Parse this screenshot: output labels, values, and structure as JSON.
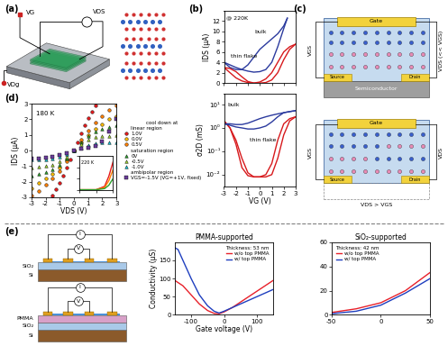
{
  "panel_labels": [
    "(a)",
    "(b)",
    "(c)",
    "(d)",
    "(e)"
  ],
  "diagram_a": {
    "gate_voltage": "VG",
    "drain_source_voltage": "VDS",
    "back_voltage": "VDg"
  },
  "diagram_c": {
    "top": {
      "gate": "Gate",
      "source": "Source",
      "drain": "Drain",
      "substrate": "Semiconductor",
      "vgs": "VGS",
      "vds": "VDS (<< VGS)"
    },
    "bottom": {
      "gate": "Gate",
      "source": "Source",
      "drain": "Drain",
      "vgs": "VGS",
      "vds": "VDS",
      "condition": "VDS > VGS"
    }
  },
  "diagram_e": {
    "devices": [
      {
        "layers": [
          "SiO₂",
          "Si"
        ],
        "current": "I",
        "voltage": "V"
      },
      {
        "layers": [
          "PMMA",
          "SiO₂",
          "Si"
        ],
        "current": "I",
        "voltage": "V"
      }
    ]
  },
  "chart_data": [
    {
      "type": "line",
      "ylabel": "IDS (μA)",
      "xlim": [
        -3,
        3
      ],
      "xticks": [
        -3,
        -2,
        -1,
        0,
        1,
        2,
        3
      ],
      "ylim": [
        0,
        14
      ],
      "yticks": [
        0,
        2,
        4,
        6,
        8,
        10,
        12
      ],
      "tick_labels": "y",
      "annotations": [
        "@ 220K",
        "bulk",
        "thin flake"
      ],
      "series": [
        {
          "color": "#2b3a9e",
          "x": [
            -3,
            -2.5,
            -2,
            -1.5,
            -1,
            -0.5,
            0,
            0.5,
            1,
            1.5,
            2,
            2.3
          ],
          "values": [
            4,
            3.5,
            3,
            2.6,
            2.3,
            2.1,
            2.2,
            2.6,
            4,
            7,
            10.5,
            12.5
          ]
        },
        {
          "color": "#2b3a9e",
          "x": [
            2.3,
            2,
            1.5,
            1,
            0.5,
            0,
            -0.5,
            -1,
            -1.5,
            -2,
            -2.5,
            -3
          ],
          "values": [
            12.5,
            11,
            9.5,
            8.5,
            7.5,
            6.5,
            5,
            3.5,
            2.6,
            2.6,
            3,
            4
          ]
        },
        {
          "color": "#d7191c",
          "x": [
            -3,
            -2.5,
            -2,
            -1.5,
            -1,
            -0.5,
            0,
            0.5,
            1,
            1.5,
            2,
            2.5,
            3
          ],
          "values": [
            3,
            2,
            1,
            0.4,
            0.1,
            0,
            0,
            0.1,
            0.6,
            2,
            4.5,
            6.5,
            7.5
          ]
        },
        {
          "color": "#d7191c",
          "x": [
            3,
            2.5,
            2,
            1.5,
            1,
            0.5,
            0,
            -0.5,
            -1,
            -1.5,
            -2,
            -2.5,
            -3
          ],
          "values": [
            7.5,
            7,
            6,
            4,
            2,
            0.8,
            0.2,
            0,
            0.3,
            1.2,
            2.2,
            2.8,
            3
          ]
        }
      ]
    },
    {
      "type": "line",
      "log": "y",
      "xlabel": "VG (V)",
      "ylabel": "σ2D (mS)",
      "xlim": [
        -3,
        3
      ],
      "xticks": [
        -3,
        -2,
        -1,
        0,
        1,
        2,
        3
      ],
      "ylim": [
        0.003,
        30
      ],
      "yticks": [
        {
          "value": 0.01,
          "label": "10⁻²"
        },
        {
          "value": 0.1,
          "label": "10⁻¹"
        },
        {
          "value": 1,
          "label": "10⁰"
        },
        {
          "value": 10,
          "label": "10¹"
        }
      ],
      "annotations": [
        "bulk",
        "thin flake"
      ],
      "series": [
        {
          "color": "#d7191c",
          "x": [
            -3,
            -2.5,
            -2,
            -1.5,
            -1,
            -0.5,
            0,
            0.5,
            1,
            1.5,
            2,
            2.5,
            3
          ],
          "values": [
            2,
            1,
            0.3,
            0.05,
            0.012,
            0.008,
            0.008,
            0.008,
            0.01,
            0.05,
            0.5,
            2,
            3
          ]
        },
        {
          "color": "#d7191c",
          "x": [
            3,
            2.5,
            2,
            1.5,
            1,
            0.5,
            0,
            -0.5,
            -1,
            -1.5,
            -2,
            -2.5,
            -3
          ],
          "values": [
            3,
            2.5,
            1.5,
            0.3,
            0.03,
            0.01,
            0.008,
            0.008,
            0.009,
            0.02,
            0.2,
            1,
            2
          ]
        },
        {
          "color": "#2b3a9e",
          "x": [
            -3,
            -2.5,
            -2,
            -1.5,
            -1,
            -0.5,
            0,
            0.5,
            1,
            1.5,
            2,
            2.5,
            3
          ],
          "values": [
            1.5,
            1.3,
            1.1,
            1.0,
            0.9,
            0.9,
            1.0,
            1.2,
            1.8,
            3,
            4.5,
            5,
            5.5
          ]
        },
        {
          "color": "#2b3a9e",
          "x": [
            3,
            2.5,
            2,
            1.5,
            1,
            0.5,
            0,
            -0.5,
            -1,
            -1.5,
            -2,
            -2.5,
            -3
          ],
          "values": [
            5.5,
            5,
            4.5,
            4,
            3.5,
            3,
            2.5,
            2,
            1.6,
            1.4,
            1.4,
            1.5,
            1.5
          ]
        }
      ]
    },
    {
      "type": "scatter",
      "xlabel": "VDS (V)",
      "ylabel": "IDS (μA)",
      "xlim": [
        -3,
        3
      ],
      "xticks": [
        -3,
        -2,
        -1,
        0,
        1,
        2,
        3
      ],
      "ylim": [
        -3,
        3
      ],
      "yticks": [
        -3,
        -2,
        -1,
        0,
        1,
        2,
        3
      ],
      "annotations": [
        "180 K"
      ],
      "legend": "right",
      "legend_title": "cool down at",
      "groups": [
        {
          "title": "linear region",
          "series": [
            {
              "name": "1.0V",
              "color": "#e41a1c",
              "marker": "circle",
              "x": [
                -1.5,
                -1.25,
                -1,
                -0.75,
                -0.5,
                -0.25,
                0,
                0.25,
                0.5,
                0.75,
                1,
                1.25,
                1.5
              ],
              "values": [
                -2.9,
                -2.5,
                -2.1,
                -1.6,
                -1.1,
                -0.55,
                0,
                0.55,
                1.1,
                1.6,
                2.1,
                2.5,
                2.9
              ]
            },
            {
              "name": "0.0V",
              "color": "#f5b800",
              "marker": "circle",
              "x": [
                -3,
                -2.5,
                -2,
                -1.5,
                -1,
                -0.5,
                0,
                0.5,
                1,
                1.5,
                2,
                2.5,
                3
              ],
              "values": [
                -2.4,
                -2.1,
                -1.8,
                -1.5,
                -1.1,
                -0.6,
                0,
                0.5,
                1.0,
                1.4,
                1.7,
                2.0,
                2.2
              ]
            },
            {
              "name": "0.5V",
              "color": "#ff7f00",
              "marker": "circle",
              "x": [
                -3,
                -2.5,
                -2,
                -1.5,
                -1,
                -0.5,
                0,
                0.5,
                1,
                1.5,
                2,
                2.5,
                3
              ],
              "values": [
                -2.9,
                -2.6,
                -2.2,
                -1.8,
                -1.3,
                -0.7,
                0,
                0.7,
                1.3,
                1.8,
                2.2,
                2.6,
                2.9
              ]
            }
          ]
        },
        {
          "title": "saturation region",
          "series": [
            {
              "name": "0V",
              "color": "#2ca02c",
              "marker": "triangle",
              "x": [
                -3,
                -2.5,
                -2,
                -1.5,
                -1,
                -0.5,
                0,
                0.5,
                1,
                1.5,
                2,
                2.5,
                3
              ],
              "values": [
                -1.6,
                -1.5,
                -1.4,
                -1.2,
                -0.9,
                -0.5,
                0,
                0.5,
                0.9,
                1.2,
                1.4,
                1.5,
                1.6
              ]
            },
            {
              "name": "-0.5V",
              "color": "#9acd32",
              "marker": "triangle",
              "x": [
                -3,
                -2.5,
                -2,
                -1.5,
                -1,
                -0.5,
                0,
                0.5,
                1,
                1.5,
                2,
                2.5,
                3
              ],
              "values": [
                -1.1,
                -1.05,
                -1,
                -0.9,
                -0.7,
                -0.4,
                0,
                0.4,
                0.7,
                0.85,
                0.9,
                0.95,
                1.0
              ]
            },
            {
              "name": "-1.0V",
              "color": "#17becf",
              "marker": "triangle",
              "x": [
                -3,
                -2.5,
                -2,
                -1.5,
                -1,
                -0.5,
                0,
                0.5,
                1,
                1.5,
                2,
                2.5,
                3
              ],
              "values": [
                -0.6,
                -0.6,
                -0.55,
                -0.5,
                -0.4,
                -0.25,
                0,
                0.2,
                0.35,
                0.45,
                0.5,
                0.5,
                0.55
              ]
            }
          ]
        },
        {
          "title": "ambipolar region",
          "series": [
            {
              "name": "VGS=-1.5V (VG=+1V, fixed)",
              "color": "#6a3d9a",
              "marker": "square",
              "x": [
                -3,
                -2.5,
                -2,
                -1.5,
                -1,
                -0.5,
                0,
                0.5,
                1,
                1.5,
                2,
                2.5,
                3
              ],
              "values": [
                -0.5,
                -0.5,
                -0.45,
                -0.4,
                -0.3,
                -0.2,
                0,
                0.1,
                0.2,
                0.3,
                0.6,
                1.2,
                2.0
              ]
            }
          ]
        }
      ]
    },
    {
      "type": "line",
      "xlim": [
        -2,
        2
      ],
      "xticks": [
        -2,
        0,
        2
      ],
      "ylim": [
        0,
        3
      ],
      "yticks": [
        0,
        1,
        2,
        3
      ],
      "tick_labels": false,
      "annotations": [
        "220 K"
      ],
      "series": [
        {
          "color": "#e41a1c",
          "x": [
            -2,
            -1,
            0,
            1,
            1.5,
            2
          ],
          "values": [
            0,
            0,
            0,
            0.3,
            1.2,
            2.5
          ]
        },
        {
          "color": "#ff7f00",
          "x": [
            -2,
            -1,
            0,
            1,
            1.5,
            2
          ],
          "values": [
            0,
            0,
            0,
            0.2,
            0.8,
            1.8
          ]
        },
        {
          "color": "#2ca02c",
          "x": [
            -2,
            -1,
            0,
            1,
            1.5,
            2
          ],
          "values": [
            0,
            0,
            0,
            0.1,
            0.4,
            1.0
          ]
        }
      ]
    },
    {
      "type": "line",
      "title": "PMMA-supported",
      "xlabel": "Gate voltage (V)",
      "ylabel": "Conductivity (μS)",
      "xlim": [
        -150,
        150
      ],
      "xticks": [
        -100,
        0,
        100
      ],
      "ylim": [
        0,
        200
      ],
      "yticks": [
        0,
        50,
        100,
        150
      ],
      "legend": "upper right",
      "legend_title": "Thickness: 53 nm",
      "series": [
        {
          "name": "w/o top PMMA",
          "color": "#e8202a",
          "x": [
            -150,
            -125,
            -100,
            -75,
            -50,
            -30,
            -15,
            0,
            25,
            50,
            75,
            100,
            125,
            150
          ],
          "values": [
            95,
            80,
            55,
            30,
            12,
            4,
            3,
            8,
            20,
            35,
            50,
            65,
            80,
            95
          ]
        },
        {
          "name": "w/ top PMMA",
          "color": "#1f3fbf",
          "x": [
            -150,
            -140,
            -125,
            -100,
            -75,
            -50,
            -30,
            -15,
            0,
            25,
            50,
            75,
            100,
            125,
            150
          ],
          "values": [
            185,
            180,
            150,
            100,
            55,
            25,
            10,
            5,
            10,
            20,
            30,
            40,
            50,
            60,
            70
          ]
        }
      ]
    },
    {
      "type": "line",
      "title": "SiO₂-supported",
      "xlim": [
        -50,
        50
      ],
      "xticks": [
        -50,
        0,
        50
      ],
      "ylim": [
        0,
        60
      ],
      "yticks": [
        0,
        20,
        40,
        60
      ],
      "legend": "upper left",
      "legend_title": "Thickness: 42 nm",
      "series": [
        {
          "name": "w/o top PMMA",
          "color": "#e8202a",
          "x": [
            -50,
            -25,
            0,
            25,
            50
          ],
          "values": [
            2,
            5,
            10,
            20,
            35
          ]
        },
        {
          "name": "w/ top PMMA",
          "color": "#1f3fbf",
          "x": [
            -50,
            -25,
            0,
            25,
            50
          ],
          "values": [
            1,
            3,
            8,
            18,
            30
          ]
        }
      ]
    }
  ]
}
